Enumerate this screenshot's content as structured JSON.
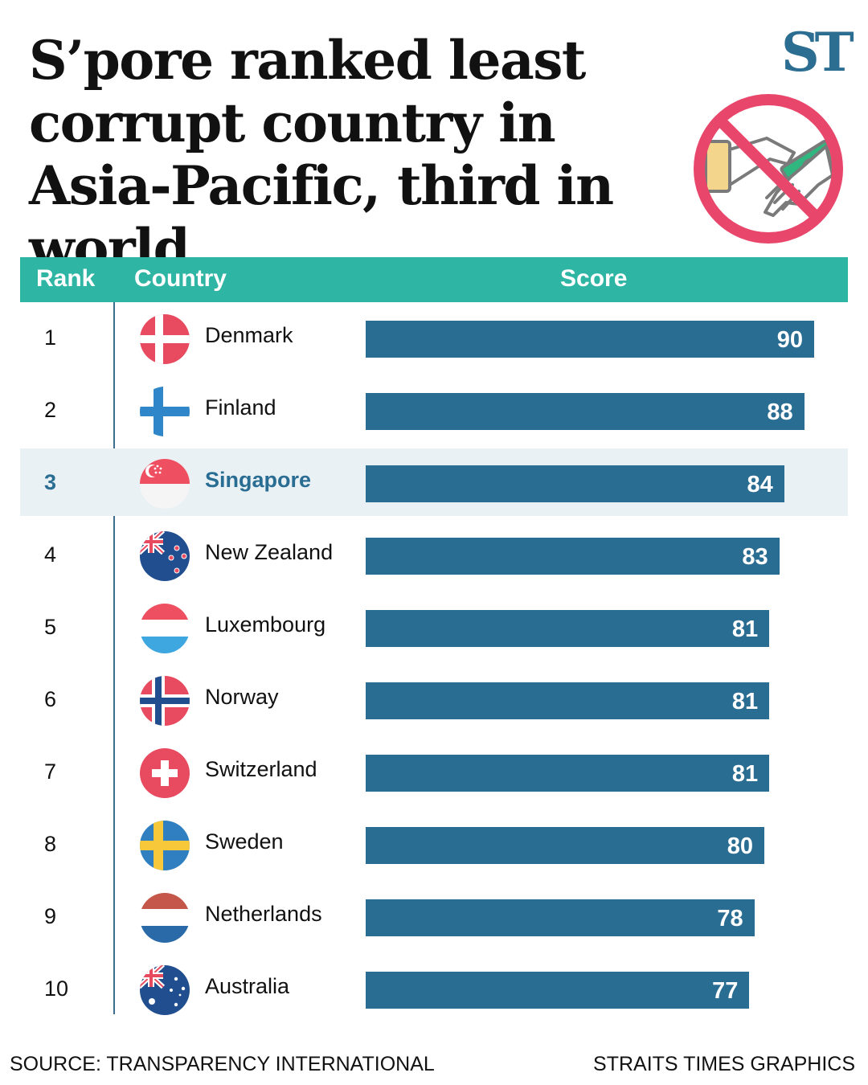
{
  "header": {
    "title": "S’pore ranked least corrupt country in Asia-Pacific, third in world",
    "logo": "ST",
    "illustration_icon": "no-bribery-icon"
  },
  "table": {
    "columns": [
      "Rank",
      "Country",
      "Score"
    ],
    "highlight_country": "Singapore"
  },
  "colors": {
    "header_bg": "#2fb5a3",
    "bar": "#2a6d93",
    "highlight_row": "#eaf1f5",
    "logo": "#2c6d92",
    "prohibit_sign": "#e8466b"
  },
  "chart_data": {
    "type": "bar",
    "orientation": "horizontal",
    "categories": [
      "Denmark",
      "Finland",
      "Singapore",
      "New Zealand",
      "Luxembourg",
      "Norway",
      "Switzerland",
      "Sweden",
      "Netherlands",
      "Australia"
    ],
    "ranks": [
      "1",
      "2",
      "3",
      "4",
      "5",
      "6",
      "7",
      "8",
      "9",
      "10"
    ],
    "values": [
      90,
      88,
      84,
      83,
      81,
      81,
      81,
      80,
      78,
      77
    ],
    "flag_icons": [
      "denmark-flag-icon",
      "finland-flag-icon",
      "singapore-flag-icon",
      "new-zealand-flag-icon",
      "luxembourg-flag-icon",
      "norway-flag-icon",
      "switzerland-flag-icon",
      "sweden-flag-icon",
      "netherlands-flag-icon",
      "australia-flag-icon"
    ],
    "xlim": [
      0,
      90
    ]
  },
  "footer": {
    "source": "SOURCE: TRANSPARENCY INTERNATIONAL",
    "credit": "STRAITS TIMES GRAPHICS"
  }
}
